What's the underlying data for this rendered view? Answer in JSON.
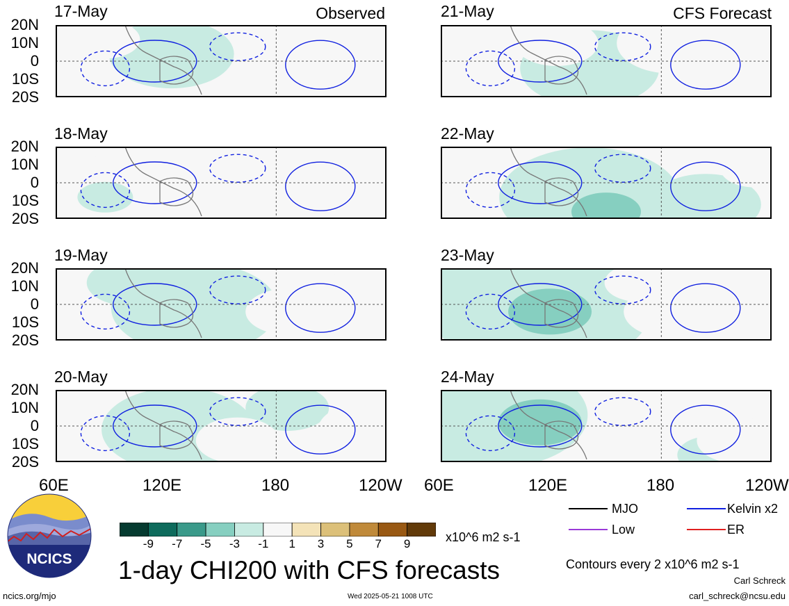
{
  "chart_data": {
    "type": "heatmap",
    "title": "1-day CHI200 with CFS forecasts",
    "observed_label": "Observed",
    "forecast_label": "CFS Forecast",
    "panels_left": [
      {
        "date": "17-May"
      },
      {
        "date": "18-May"
      },
      {
        "date": "19-May"
      },
      {
        "date": "20-May"
      }
    ],
    "panels_right": [
      {
        "date": "21-May"
      },
      {
        "date": "22-May"
      },
      {
        "date": "23-May"
      },
      {
        "date": "24-May"
      }
    ],
    "lat_ticks": [
      "20N",
      "10N",
      "0",
      "10S",
      "20S"
    ],
    "lon_ticks": [
      "60E",
      "120E",
      "180",
      "120W"
    ],
    "lon_range_deg_east": [
      60,
      240
    ],
    "lat_range_deg": [
      -20,
      20
    ],
    "colorbar": {
      "ticks": [
        "-9",
        "-7",
        "-5",
        "-3",
        "-1",
        "1",
        "3",
        "5",
        "7",
        "9"
      ],
      "colors": [
        "#053b30",
        "#0e6b5c",
        "#3a9a8a",
        "#86cfc0",
        "#c8ebe2",
        "#f7f7f7",
        "#f4e3b8",
        "#dcc079",
        "#c08a3a",
        "#995913",
        "#623a09"
      ],
      "units": "x10^6 m2 s-1"
    },
    "contour_note": "Contours every 2 x10^6 m2 s-1",
    "legend": [
      {
        "label": "MJO",
        "color": "#000000"
      },
      {
        "label": "Kelvin x2",
        "color": "#1020e0"
      },
      {
        "label": "Low",
        "color": "#9a3ad8"
      },
      {
        "label": "ER",
        "color": "#e02020"
      }
    ]
  },
  "footer": {
    "logo_text": "NCICS",
    "url": "ncics.org/mjo",
    "timestamp": "Wed 2025-05-21 1008 UTC",
    "author": "Carl Schreck",
    "email": "carl_schreck@ncsu.edu"
  }
}
